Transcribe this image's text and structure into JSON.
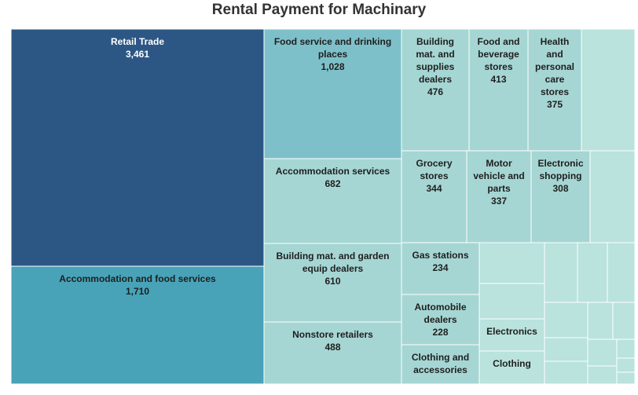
{
  "chart_data": {
    "type": "treemap",
    "title": "Rental Payment for Machinary",
    "colors": {
      "dark": "#2c5784",
      "medium": "#48a3b8",
      "mid_light": "#7ec0c9",
      "light": "#a5d6d3",
      "lighter": "#b9e3dc"
    },
    "items": [
      {
        "name": "Retail Trade",
        "value": 3461,
        "label": "3,461",
        "level": "dark"
      },
      {
        "name": "Accommodation and food services",
        "value": 1710,
        "label": "1,710",
        "level": "medium"
      },
      {
        "name": "Food service and drinking places",
        "value": 1028,
        "label": "1,028",
        "level": "mid_light"
      },
      {
        "name": "Accommodation services",
        "value": 682,
        "label": "682",
        "level": "light"
      },
      {
        "name": "Building mat. and garden equip dealers",
        "value": 610,
        "label": "610",
        "level": "light"
      },
      {
        "name": "Nonstore retailers",
        "value": 488,
        "label": "488",
        "level": "light"
      },
      {
        "name": "Building mat. and supplies dealers",
        "value": 476,
        "label": "476",
        "level": "light"
      },
      {
        "name": "Food and beverage stores",
        "value": 413,
        "label": "413",
        "level": "light"
      },
      {
        "name": "Health and personal care stores",
        "value": 375,
        "label": "375",
        "level": "light"
      },
      {
        "name": "Grocery stores",
        "value": 344,
        "label": "344",
        "level": "light"
      },
      {
        "name": "Motor vehicle and parts",
        "value": 337,
        "label": "337",
        "level": "light"
      },
      {
        "name": "Electronic shopping",
        "value": 308,
        "label": "308",
        "level": "light"
      },
      {
        "name": "Gas stations",
        "value": 234,
        "label": "234",
        "level": "light"
      },
      {
        "name": "Automobile dealers",
        "value": 228,
        "label": "228",
        "level": "light"
      },
      {
        "name": "Clothing and accessories",
        "value": null,
        "label": "",
        "level": "light"
      },
      {
        "name": "Electronics",
        "value": null,
        "label": "",
        "level": "lighter"
      },
      {
        "name": "Clothing",
        "value": null,
        "label": "",
        "level": "lighter"
      }
    ]
  }
}
